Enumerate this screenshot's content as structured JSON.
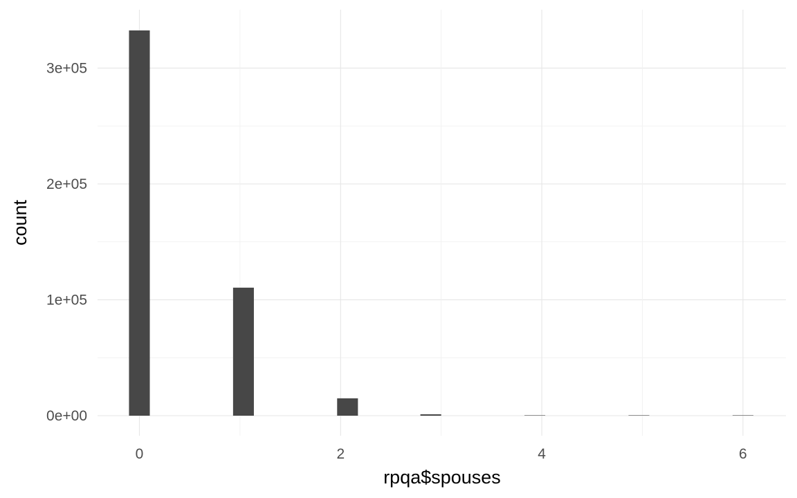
{
  "chart_data": {
    "type": "bar",
    "subtype": "histogram",
    "xlabel": "rpqa$spouses",
    "ylabel": "count",
    "xlim": [
      -0.2,
      6.4
    ],
    "ylim": [
      0,
      333000
    ],
    "x_ticks": [
      0,
      2,
      4,
      6
    ],
    "x_tick_labels": [
      "0",
      "2",
      "4",
      "6"
    ],
    "y_ticks": [
      0,
      100000,
      200000,
      300000
    ],
    "y_tick_labels": [
      "0e+00",
      "1e+05",
      "2e+05",
      "3e+05"
    ],
    "bin_width": 0.2069,
    "bars": [
      {
        "x": 0,
        "count": 332500
      },
      {
        "x": 1.0345,
        "count": 110500
      },
      {
        "x": 2.069,
        "count": 15000
      },
      {
        "x": 2.8966,
        "count": 1200
      },
      {
        "x": 3.931,
        "count": 300
      },
      {
        "x": 4.9655,
        "count": 60
      },
      {
        "x": 6.0,
        "count": 20
      }
    ],
    "grid": true,
    "bar_color": "#474747",
    "theme": "minimal"
  }
}
